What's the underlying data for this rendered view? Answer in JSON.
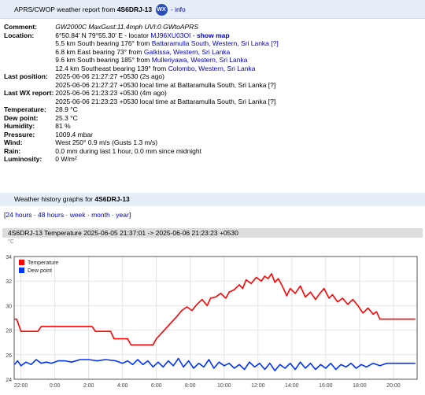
{
  "header": {
    "prefix": "APRS/CWOP weather report from",
    "callsign": "4S6DRJ-13",
    "badge": "WX",
    "info_link": "- info"
  },
  "report": {
    "comment_label": "Comment:",
    "comment": "GW2000C MaxGust:11.4mph UVI:0 GWtoAPRS",
    "location_label": "Location:",
    "location_coords": "6°50.84' N 79°55.30' E - locator",
    "locator": "MJ96XU03OI",
    "locator_sep": " - ",
    "show_map": "show map",
    "nearby": [
      {
        "text": "5.5 km South bearing 176° from",
        "place": "Battaramulla South, Western, Sri Lanka",
        "suffix": "[?]"
      },
      {
        "text": "6.8 km East bearing 73° from",
        "place": "Galkissa, Western, Sri Lanka",
        "suffix": ""
      },
      {
        "text": "9.6 km South bearing 185° from",
        "place": "Mulleriyawa, Western, Sri Lanka",
        "suffix": ""
      },
      {
        "text": "12.4 km Southeast bearing 139° from",
        "place": "Colombo, Western, Sri Lanka",
        "suffix": ""
      }
    ],
    "last_position_label": "Last position:",
    "last_position": "2025-06-06 21:27:27 +0530 (2s ago)",
    "last_position_local": "2025-06-06 21:27:27 +0530 local time at Battaramulla South, Sri Lanka [?]",
    "last_wx_label": "Last WX report:",
    "last_wx": "2025-06-06 21:23:23 +0530 (4m ago)",
    "last_wx_local": "2025-06-06 21:23:23 +0530 local time at Battaramulla South, Sri Lanka [?]",
    "temperature_label": "Temperature:",
    "temperature": "28.9 °C",
    "dew_point_label": "Dew point:",
    "dew_point": "25.3 °C",
    "humidity_label": "Humidity:",
    "humidity": "81 %",
    "pressure_label": "Pressure:",
    "pressure": "1009.4 mbar",
    "wind_label": "Wind:",
    "wind": "West 250° 0.9 m/s (Gusts 1.3 m/s)",
    "rain_label": "Rain:",
    "rain": "0.0 mm during last 1 hour, 0.0 mm since midnight",
    "luminosity_label": "Luminosity:",
    "luminosity": "0 W/m²"
  },
  "history": {
    "title_prefix": "Weather history graphs for",
    "callsign": "4S6DRJ-13",
    "open_bracket": "[",
    "close_bracket": "]",
    "sep": " · ",
    "ranges": [
      "24 hours",
      "48 hours",
      "week",
      "month",
      "year"
    ]
  },
  "chart_header": {
    "title": "4S6DRJ-13 Temperature 2025-06-05 21:37:01 -> 2025-06-06 21:23:23 +0530",
    "unit": "°C"
  },
  "colors": {
    "temperature": "#ff0000",
    "dew_point": "#0033ff",
    "header_bg": "#e6eef8",
    "link": "#0000cc"
  },
  "chart_data": {
    "type": "line",
    "ylim": [
      24,
      34
    ],
    "xlim": [
      21.6,
      45.4
    ],
    "yticks": [
      24,
      26,
      28,
      30,
      32,
      34
    ],
    "xticks": [
      {
        "h": 22,
        "label": "22:00"
      },
      {
        "h": 24,
        "label": "0:00"
      },
      {
        "h": 26,
        "label": "2:00"
      },
      {
        "h": 28,
        "label": "4:00"
      },
      {
        "h": 30,
        "label": "6:00"
      },
      {
        "h": 32,
        "label": "8:00"
      },
      {
        "h": 34,
        "label": "10:00"
      },
      {
        "h": 36,
        "label": "12:00"
      },
      {
        "h": 38,
        "label": "14:00"
      },
      {
        "h": 40,
        "label": "16:00"
      },
      {
        "h": 42,
        "label": "18:00"
      },
      {
        "h": 44,
        "label": "20:00"
      }
    ],
    "legend_position": "top-left",
    "grid": true,
    "series": [
      {
        "name": "Temperature",
        "color": "#ff0000",
        "points": [
          [
            21.62,
            28.9
          ],
          [
            21.75,
            28.9
          ],
          [
            21.9,
            28.3
          ],
          [
            22.0,
            27.9
          ],
          [
            23.0,
            27.9
          ],
          [
            23.2,
            28.3
          ],
          [
            26.2,
            28.3
          ],
          [
            26.4,
            27.9
          ],
          [
            27.3,
            27.9
          ],
          [
            27.5,
            27.3
          ],
          [
            28.3,
            27.3
          ],
          [
            28.5,
            26.8
          ],
          [
            29.8,
            26.8
          ],
          [
            30.0,
            27.3
          ],
          [
            30.4,
            27.9
          ],
          [
            30.8,
            28.5
          ],
          [
            31.2,
            29.1
          ],
          [
            31.5,
            29.6
          ],
          [
            31.8,
            29.9
          ],
          [
            32.1,
            29.6
          ],
          [
            32.4,
            30.1
          ],
          [
            32.7,
            30.5
          ],
          [
            33.0,
            30.0
          ],
          [
            33.2,
            30.6
          ],
          [
            33.5,
            30.7
          ],
          [
            33.8,
            31.0
          ],
          [
            34.1,
            30.6
          ],
          [
            34.3,
            31.1
          ],
          [
            34.6,
            31.3
          ],
          [
            34.9,
            31.7
          ],
          [
            35.1,
            31.4
          ],
          [
            35.3,
            32.1
          ],
          [
            35.6,
            31.8
          ],
          [
            35.9,
            32.3
          ],
          [
            36.2,
            32.0
          ],
          [
            36.4,
            32.4
          ],
          [
            36.6,
            32.2
          ],
          [
            36.8,
            32.6
          ],
          [
            37.0,
            31.9
          ],
          [
            37.2,
            32.2
          ],
          [
            37.4,
            31.7
          ],
          [
            37.7,
            30.8
          ],
          [
            37.9,
            31.4
          ],
          [
            38.2,
            31.0
          ],
          [
            38.5,
            31.6
          ],
          [
            38.8,
            30.7
          ],
          [
            39.1,
            31.1
          ],
          [
            39.4,
            30.5
          ],
          [
            39.6,
            30.9
          ],
          [
            39.9,
            31.4
          ],
          [
            40.2,
            30.6
          ],
          [
            40.4,
            30.9
          ],
          [
            40.7,
            30.3
          ],
          [
            41.0,
            30.6
          ],
          [
            41.3,
            30.1
          ],
          [
            41.6,
            30.5
          ],
          [
            41.9,
            30.0
          ],
          [
            42.2,
            29.4
          ],
          [
            42.5,
            29.8
          ],
          [
            42.8,
            29.3
          ],
          [
            43.0,
            29.5
          ],
          [
            43.2,
            28.9
          ],
          [
            45.3,
            28.9
          ]
        ]
      },
      {
        "name": "Dew point",
        "color": "#0033ff",
        "points": [
          [
            21.62,
            25.2
          ],
          [
            21.8,
            25.5
          ],
          [
            22.0,
            25.1
          ],
          [
            22.3,
            25.4
          ],
          [
            22.6,
            25.2
          ],
          [
            22.9,
            25.6
          ],
          [
            23.2,
            25.3
          ],
          [
            23.5,
            25.4
          ],
          [
            23.8,
            25.3
          ],
          [
            24.2,
            25.5
          ],
          [
            24.6,
            25.5
          ],
          [
            25.0,
            25.4
          ],
          [
            25.5,
            25.6
          ],
          [
            26.0,
            25.6
          ],
          [
            26.5,
            25.5
          ],
          [
            27.0,
            25.6
          ],
          [
            27.6,
            25.5
          ],
          [
            28.0,
            25.3
          ],
          [
            28.3,
            25.5
          ],
          [
            28.6,
            25.2
          ],
          [
            28.9,
            25.6
          ],
          [
            29.2,
            25.2
          ],
          [
            29.5,
            25.5
          ],
          [
            29.8,
            25.0
          ],
          [
            30.1,
            25.4
          ],
          [
            30.4,
            25.0
          ],
          [
            30.7,
            25.5
          ],
          [
            31.0,
            25.1
          ],
          [
            31.3,
            25.7
          ],
          [
            31.6,
            25.0
          ],
          [
            31.9,
            25.5
          ],
          [
            32.2,
            24.9
          ],
          [
            32.5,
            25.3
          ],
          [
            32.8,
            25.0
          ],
          [
            33.1,
            25.6
          ],
          [
            33.4,
            24.9
          ],
          [
            33.7,
            25.4
          ],
          [
            34.0,
            25.1
          ],
          [
            34.3,
            25.3
          ],
          [
            34.6,
            24.9
          ],
          [
            34.9,
            25.2
          ],
          [
            35.2,
            24.8
          ],
          [
            35.5,
            25.4
          ],
          [
            35.8,
            25.0
          ],
          [
            36.1,
            25.3
          ],
          [
            36.4,
            24.8
          ],
          [
            36.7,
            25.3
          ],
          [
            37.0,
            24.7
          ],
          [
            37.3,
            25.2
          ],
          [
            37.6,
            24.9
          ],
          [
            37.9,
            25.3
          ],
          [
            38.2,
            24.8
          ],
          [
            38.5,
            25.4
          ],
          [
            38.8,
            24.9
          ],
          [
            39.1,
            25.3
          ],
          [
            39.4,
            24.8
          ],
          [
            39.7,
            25.2
          ],
          [
            40.0,
            24.9
          ],
          [
            40.3,
            25.3
          ],
          [
            40.6,
            24.8
          ],
          [
            40.9,
            25.2
          ],
          [
            41.2,
            25.0
          ],
          [
            41.5,
            25.3
          ],
          [
            41.8,
            24.9
          ],
          [
            42.1,
            25.2
          ],
          [
            42.4,
            25.0
          ],
          [
            42.8,
            25.3
          ],
          [
            43.2,
            25.1
          ],
          [
            43.6,
            25.3
          ],
          [
            44.0,
            25.3
          ],
          [
            44.5,
            25.3
          ],
          [
            45.3,
            25.3
          ]
        ]
      }
    ]
  }
}
